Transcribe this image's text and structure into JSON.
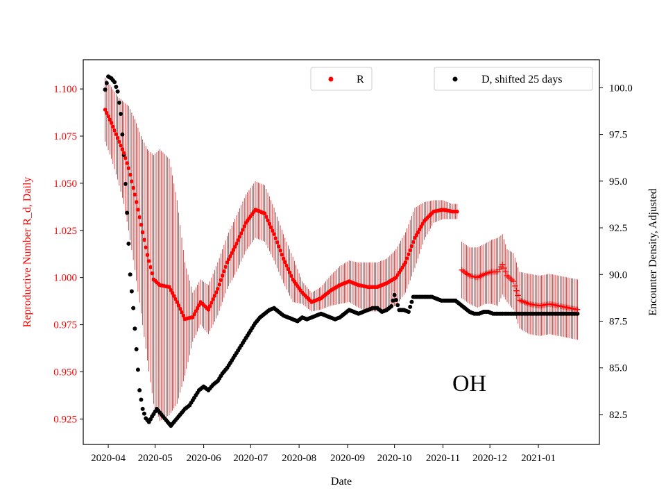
{
  "colors": {
    "r_series": "#ff0000",
    "d_series": "#000000",
    "error_bars": "#cc0000",
    "left_axis_text": "#ff0000"
  },
  "chart_data": {
    "type": "scatter",
    "title": "",
    "annotation": "OH",
    "xlabel": "Date",
    "ylabel_left": "Reproductive Number R_d, Daily",
    "ylabel_right": "Encounter Density, Adjusted",
    "x_ticks": [
      "2020-04",
      "2020-05",
      "2020-06",
      "2020-07",
      "2020-08",
      "2020-09",
      "2020-10",
      "2020-11",
      "2020-12",
      "2021-01"
    ],
    "x_range": [
      "2020-03-16",
      "2021-02-09"
    ],
    "y_left_range": [
      0.9115,
      1.1155
    ],
    "y_left_ticks": [
      "0.925",
      "0.950",
      "0.975",
      "1.000",
      "1.025",
      "1.050",
      "1.075",
      "1.100"
    ],
    "y_right_range": [
      80.9,
      101.5
    ],
    "y_right_ticks": [
      "82.5",
      "85.0",
      "87.5",
      "90.0",
      "92.5",
      "95.0",
      "97.5",
      "100.0"
    ],
    "legend": {
      "r_label": "R",
      "d_label": "D, shifted 25 days",
      "r_position": "top-center",
      "d_position": "top-right"
    },
    "grid": false,
    "series_r": {
      "name": "R",
      "axis": "left",
      "marker": "dot",
      "points": [
        [
          "2020-03-30",
          1.089
        ],
        [
          "2020-04-03",
          1.082
        ],
        [
          "2020-04-07",
          1.074
        ],
        [
          "2020-04-11",
          1.066
        ],
        [
          "2020-04-14",
          1.058
        ],
        [
          "2020-04-18",
          1.044
        ],
        [
          "2020-04-22",
          1.028
        ],
        [
          "2020-04-26",
          1.012
        ],
        [
          "2020-04-30",
          0.999
        ],
        [
          "2020-05-04",
          0.996
        ],
        [
          "2020-05-10",
          0.995
        ],
        [
          "2020-05-15",
          0.987
        ],
        [
          "2020-05-20",
          0.978
        ],
        [
          "2020-05-25",
          0.979
        ],
        [
          "2020-05-30",
          0.987
        ],
        [
          "2020-06-04",
          0.983
        ],
        [
          "2020-06-10",
          0.994
        ],
        [
          "2020-06-16",
          1.008
        ],
        [
          "2020-06-22",
          1.018
        ],
        [
          "2020-06-28",
          1.029
        ],
        [
          "2020-07-04",
          1.036
        ],
        [
          "2020-07-10",
          1.034
        ],
        [
          "2020-07-16",
          1.023
        ],
        [
          "2020-07-22",
          1.01
        ],
        [
          "2020-07-28",
          0.999
        ],
        [
          "2020-08-03",
          0.992
        ],
        [
          "2020-08-09",
          0.987
        ],
        [
          "2020-08-15",
          0.989
        ],
        [
          "2020-08-21",
          0.993
        ],
        [
          "2020-08-27",
          0.996
        ],
        [
          "2020-09-02",
          0.998
        ],
        [
          "2020-09-08",
          0.996
        ],
        [
          "2020-09-14",
          0.995
        ],
        [
          "2020-09-20",
          0.995
        ],
        [
          "2020-09-26",
          0.997
        ],
        [
          "2020-10-02",
          1.0
        ],
        [
          "2020-10-08",
          1.008
        ],
        [
          "2020-10-14",
          1.021
        ],
        [
          "2020-10-20",
          1.03
        ],
        [
          "2020-10-26",
          1.035
        ],
        [
          "2020-11-01",
          1.036
        ],
        [
          "2020-11-07",
          1.035
        ],
        [
          "2020-11-10",
          1.035
        ]
      ],
      "error_half_width": [
        0.017,
        0.019,
        0.022,
        0.027,
        0.033,
        0.04,
        0.047,
        0.056,
        0.066,
        0.072,
        0.068,
        0.054,
        0.03,
        0.013,
        0.012,
        0.013,
        0.014,
        0.014,
        0.015,
        0.015,
        0.015,
        0.015,
        0.014,
        0.013,
        0.012,
        0.006,
        0.005,
        0.006,
        0.008,
        0.01,
        0.011,
        0.012,
        0.013,
        0.013,
        0.013,
        0.015,
        0.016,
        0.016,
        0.01,
        0.006,
        0.005,
        0.004,
        0.004
      ]
    },
    "series_r_projected": {
      "name": "R",
      "axis": "left",
      "marker": "plus",
      "points": [
        [
          "2020-11-13",
          1.004
        ],
        [
          "2020-11-18",
          1.001
        ],
        [
          "2020-11-23",
          1.0
        ],
        [
          "2020-11-28",
          1.002
        ],
        [
          "2020-12-02",
          1.003
        ],
        [
          "2020-12-06",
          1.003
        ],
        [
          "2020-12-09",
          1.007
        ],
        [
          "2020-12-12",
          1.001
        ],
        [
          "2020-12-16",
          0.998
        ],
        [
          "2020-12-20",
          0.988
        ],
        [
          "2020-12-26",
          0.986
        ],
        [
          "2021-01-02",
          0.985
        ],
        [
          "2021-01-08",
          0.986
        ],
        [
          "2021-01-14",
          0.985
        ],
        [
          "2021-01-20",
          0.984
        ],
        [
          "2021-01-26",
          0.983
        ]
      ],
      "error_half_width": [
        0.015,
        0.015,
        0.016,
        0.016,
        0.017,
        0.018,
        0.016,
        0.014,
        0.015,
        0.015,
        0.016,
        0.016,
        0.016,
        0.016,
        0.016,
        0.016
      ]
    },
    "series_d": {
      "name": "D, shifted 25 days",
      "axis": "right",
      "marker": "dot",
      "points": [
        [
          "2020-03-30",
          99.9
        ],
        [
          "2020-04-01",
          100.6
        ],
        [
          "2020-04-03",
          100.5
        ],
        [
          "2020-04-05",
          100.3
        ],
        [
          "2020-04-07",
          99.8
        ],
        [
          "2020-04-09",
          98.6
        ],
        [
          "2020-04-11",
          96.4
        ],
        [
          "2020-04-13",
          93.3
        ],
        [
          "2020-04-15",
          90.0
        ],
        [
          "2020-04-17",
          88.2
        ],
        [
          "2020-04-19",
          86.0
        ],
        [
          "2020-04-21",
          83.8
        ],
        [
          "2020-04-23",
          82.8
        ],
        [
          "2020-04-25",
          82.3
        ],
        [
          "2020-04-27",
          82.1
        ],
        [
          "2020-04-29",
          82.4
        ],
        [
          "2020-05-02",
          82.8
        ],
        [
          "2020-05-05",
          82.5
        ],
        [
          "2020-05-08",
          82.2
        ],
        [
          "2020-05-11",
          81.9
        ],
        [
          "2020-05-14",
          82.2
        ],
        [
          "2020-05-17",
          82.5
        ],
        [
          "2020-05-20",
          82.8
        ],
        [
          "2020-05-23",
          83.0
        ],
        [
          "2020-05-26",
          83.4
        ],
        [
          "2020-05-29",
          83.8
        ],
        [
          "2020-06-01",
          84.0
        ],
        [
          "2020-06-04",
          83.8
        ],
        [
          "2020-06-07",
          84.1
        ],
        [
          "2020-06-10",
          84.3
        ],
        [
          "2020-06-13",
          84.7
        ],
        [
          "2020-06-16",
          85.0
        ],
        [
          "2020-06-19",
          85.4
        ],
        [
          "2020-06-22",
          85.8
        ],
        [
          "2020-06-25",
          86.2
        ],
        [
          "2020-06-28",
          86.6
        ],
        [
          "2020-07-01",
          87.0
        ],
        [
          "2020-07-04",
          87.4
        ],
        [
          "2020-07-07",
          87.7
        ],
        [
          "2020-07-10",
          87.9
        ],
        [
          "2020-07-13",
          88.1
        ],
        [
          "2020-07-16",
          88.2
        ],
        [
          "2020-07-19",
          88.0
        ],
        [
          "2020-07-22",
          87.8
        ],
        [
          "2020-07-25",
          87.7
        ],
        [
          "2020-07-28",
          87.6
        ],
        [
          "2020-07-31",
          87.5
        ],
        [
          "2020-08-03",
          87.7
        ],
        [
          "2020-08-06",
          87.6
        ],
        [
          "2020-08-09",
          87.7
        ],
        [
          "2020-08-12",
          87.8
        ],
        [
          "2020-08-15",
          87.9
        ],
        [
          "2020-08-18",
          87.8
        ],
        [
          "2020-08-21",
          87.7
        ],
        [
          "2020-08-24",
          87.6
        ],
        [
          "2020-08-27",
          87.7
        ],
        [
          "2020-08-30",
          87.9
        ],
        [
          "2020-09-02",
          88.1
        ],
        [
          "2020-09-05",
          88.0
        ],
        [
          "2020-09-08",
          87.9
        ],
        [
          "2020-09-11",
          88.0
        ],
        [
          "2020-09-14",
          88.1
        ],
        [
          "2020-09-17",
          88.2
        ],
        [
          "2020-09-20",
          88.2
        ],
        [
          "2020-09-23",
          88.0
        ],
        [
          "2020-09-26",
          88.1
        ],
        [
          "2020-09-29",
          88.3
        ],
        [
          "2020-10-01",
          88.9
        ],
        [
          "2020-10-04",
          88.1
        ],
        [
          "2020-10-07",
          88.1
        ],
        [
          "2020-10-10",
          88.0
        ],
        [
          "2020-10-13",
          88.8
        ],
        [
          "2020-10-16",
          88.8
        ],
        [
          "2020-10-19",
          88.8
        ],
        [
          "2020-10-22",
          88.8
        ],
        [
          "2020-10-25",
          88.8
        ],
        [
          "2020-10-28",
          88.7
        ],
        [
          "2020-10-31",
          88.6
        ],
        [
          "2020-11-03",
          88.6
        ],
        [
          "2020-11-06",
          88.6
        ],
        [
          "2020-11-09",
          88.6
        ],
        [
          "2020-11-12",
          88.4
        ],
        [
          "2020-11-15",
          88.2
        ],
        [
          "2020-11-18",
          88.0
        ],
        [
          "2020-11-21",
          87.9
        ],
        [
          "2020-11-24",
          87.9
        ],
        [
          "2020-11-27",
          88.0
        ],
        [
          "2020-11-30",
          88.0
        ],
        [
          "2020-12-03",
          87.9
        ],
        [
          "2020-12-06",
          87.9
        ],
        [
          "2020-12-09",
          87.9
        ],
        [
          "2020-12-12",
          87.9
        ],
        [
          "2020-12-15",
          87.9
        ],
        [
          "2020-12-18",
          87.9
        ],
        [
          "2020-12-21",
          87.9
        ],
        [
          "2020-12-24",
          87.9
        ],
        [
          "2020-12-27",
          87.9
        ],
        [
          "2020-12-30",
          87.9
        ],
        [
          "2021-01-02",
          87.9
        ],
        [
          "2021-01-05",
          87.9
        ],
        [
          "2021-01-08",
          87.9
        ],
        [
          "2021-01-11",
          87.9
        ],
        [
          "2021-01-14",
          87.9
        ],
        [
          "2021-01-17",
          87.9
        ],
        [
          "2021-01-20",
          87.9
        ],
        [
          "2021-01-23",
          87.9
        ],
        [
          "2021-01-26",
          87.9
        ]
      ]
    }
  }
}
